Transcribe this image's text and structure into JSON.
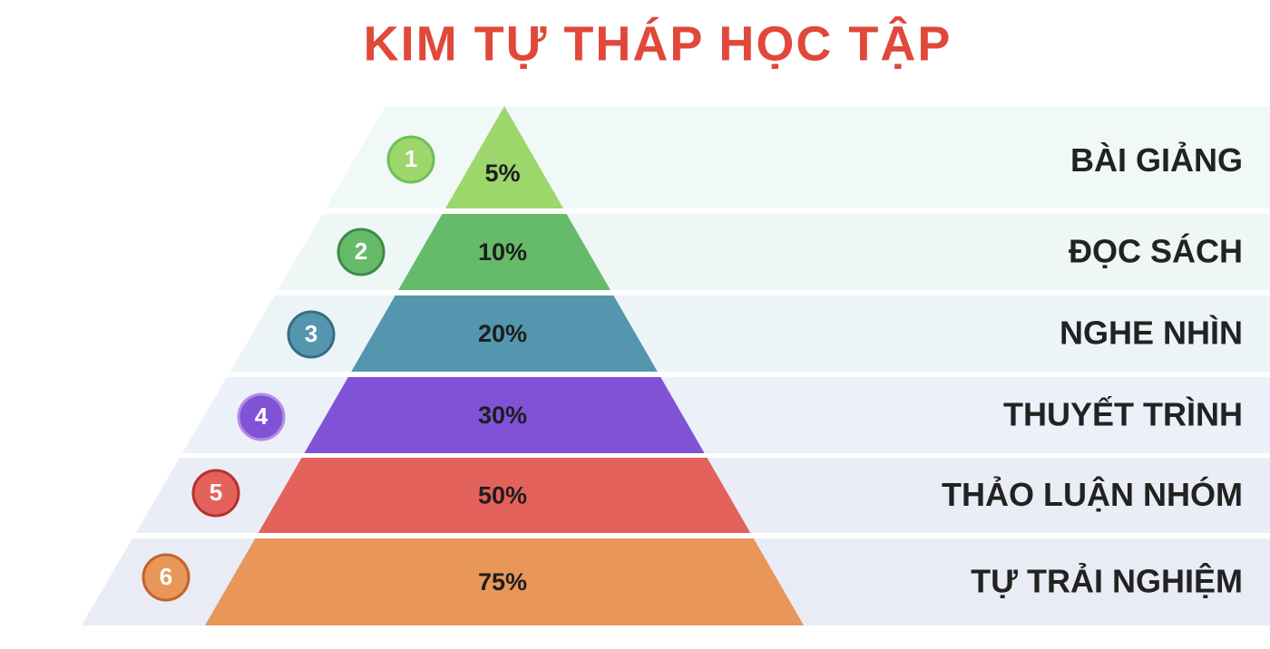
{
  "title": "KIM TỰ THÁP HỌC TẬP",
  "levels": [
    {
      "number": "1",
      "percent": "5%",
      "label": "BÀI GIẢNG"
    },
    {
      "number": "2",
      "percent": "10%",
      "label": "ĐỌC SÁCH"
    },
    {
      "number": "3",
      "percent": "20%",
      "label": "NGHE NHÌN"
    },
    {
      "number": "4",
      "percent": "30%",
      "label": "THUYẾT TRÌNH"
    },
    {
      "number": "5",
      "percent": "50%",
      "label": "THẢO LUẬN NHÓM"
    },
    {
      "number": "6",
      "percent": "75%",
      "label": "TỰ TRẢI NGHIỆM"
    }
  ]
}
